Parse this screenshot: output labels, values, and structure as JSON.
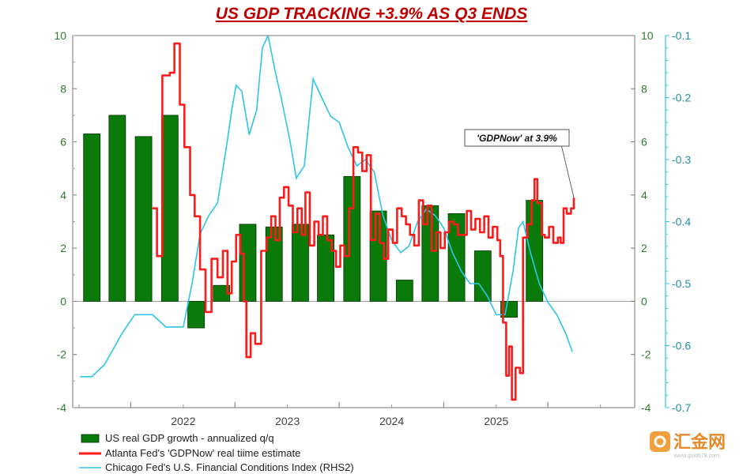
{
  "chart_data": {
    "type": "bar",
    "title": "US GDP TRACKING +3.9% AS Q3 ENDS",
    "xlabel": "",
    "ylabel": "",
    "ylim": [
      -4,
      10
    ],
    "ylim_rhs2": [
      -0.7,
      -0.1
    ],
    "yticks_left": [
      "10",
      "8",
      "6",
      "4",
      "2",
      "0",
      "-2",
      "-4"
    ],
    "yticks_right1": [
      "10",
      "8",
      "6",
      "4",
      "2",
      "0",
      "-2",
      "-4"
    ],
    "yticks_right2": [
      "-0.1",
      "-0.2",
      "-0.3",
      "-0.4",
      "-0.5",
      "-0.6",
      "-0.7"
    ],
    "xtick_labels": [
      "2022",
      "2023",
      "2024",
      "2025"
    ],
    "grid": false,
    "legend_position": "bottom-left",
    "series": [
      {
        "name": "US real GDP growth - annualized q/q",
        "type": "bar",
        "axis": "left",
        "color": "#0a7a0a",
        "points": [
          {
            "x": "2021-01",
            "y": 6.3
          },
          {
            "x": "2021-04",
            "y": 7.0
          },
          {
            "x": "2021-07",
            "y": 6.2
          },
          {
            "x": "2021-10",
            "y": 7.0
          },
          {
            "x": "2022-01",
            "y": -1.0
          },
          {
            "x": "2022-04",
            "y": 0.6
          },
          {
            "x": "2022-07",
            "y": 2.9
          },
          {
            "x": "2022-10",
            "y": 2.8
          },
          {
            "x": "2023-01",
            "y": 2.9
          },
          {
            "x": "2023-04",
            "y": 2.5
          },
          {
            "x": "2023-07",
            "y": 4.7
          },
          {
            "x": "2023-10",
            "y": 3.4
          },
          {
            "x": "2024-01",
            "y": 0.8
          },
          {
            "x": "2024-04",
            "y": 3.6
          },
          {
            "x": "2024-07",
            "y": 3.3
          },
          {
            "x": "2024-10",
            "y": 1.9
          },
          {
            "x": "2025-01",
            "y": -0.6
          },
          {
            "x": "2025-04",
            "y": 3.8
          }
        ]
      },
      {
        "name": "Atlanta Fed's 'GDPNow' real tiime estimate",
        "type": "line",
        "axis": "left",
        "color": "#ff1a1a",
        "points": [
          {
            "x": "2021-09-15",
            "y": 3.5
          },
          {
            "x": "2021-10-01",
            "y": 1.7
          },
          {
            "x": "2021-10-20",
            "y": 8.5
          },
          {
            "x": "2021-11-15",
            "y": 8.6
          },
          {
            "x": "2021-12-01",
            "y": 9.7
          },
          {
            "x": "2021-12-20",
            "y": 7.4
          },
          {
            "x": "2022-01-05",
            "y": 5.8
          },
          {
            "x": "2022-01-25",
            "y": 4.0
          },
          {
            "x": "2022-02-10",
            "y": 3.2
          },
          {
            "x": "2022-03-01",
            "y": 1.2
          },
          {
            "x": "2022-03-20",
            "y": -0.4
          },
          {
            "x": "2022-04-10",
            "y": 1.6
          },
          {
            "x": "2022-05-01",
            "y": 0.9
          },
          {
            "x": "2022-05-20",
            "y": 1.9
          },
          {
            "x": "2022-06-05",
            "y": 0.3
          },
          {
            "x": "2022-06-20",
            "y": 1.5
          },
          {
            "x": "2022-07-05",
            "y": 2.5
          },
          {
            "x": "2022-07-20",
            "y": 1.8
          },
          {
            "x": "2022-08-01",
            "y": 0.0
          },
          {
            "x": "2022-08-10",
            "y": -2.1
          },
          {
            "x": "2022-08-25",
            "y": -1.2
          },
          {
            "x": "2022-09-10",
            "y": -1.6
          },
          {
            "x": "2022-10-01",
            "y": 1.9
          },
          {
            "x": "2022-10-20",
            "y": 2.4
          },
          {
            "x": "2022-11-05",
            "y": 3.2
          },
          {
            "x": "2022-11-20",
            "y": 2.3
          },
          {
            "x": "2022-12-05",
            "y": 3.9
          },
          {
            "x": "2022-12-20",
            "y": 4.3
          },
          {
            "x": "2023-01-05",
            "y": 3.6
          },
          {
            "x": "2023-01-20",
            "y": 2.6
          },
          {
            "x": "2023-02-05",
            "y": 3.5
          },
          {
            "x": "2023-02-20",
            "y": 2.5
          },
          {
            "x": "2023-03-05",
            "y": 4.1
          },
          {
            "x": "2023-03-20",
            "y": 2.1
          },
          {
            "x": "2023-04-05",
            "y": 3.0
          },
          {
            "x": "2023-04-20",
            "y": 2.5
          },
          {
            "x": "2023-05-05",
            "y": 3.2
          },
          {
            "x": "2023-05-20",
            "y": 2.3
          },
          {
            "x": "2023-06-05",
            "y": 1.9
          },
          {
            "x": "2023-06-20",
            "y": 1.3
          },
          {
            "x": "2023-07-05",
            "y": 2.1
          },
          {
            "x": "2023-07-20",
            "y": 1.7
          },
          {
            "x": "2023-08-05",
            "y": 3.5
          },
          {
            "x": "2023-08-20",
            "y": 5.8
          },
          {
            "x": "2023-09-05",
            "y": 5.6
          },
          {
            "x": "2023-09-20",
            "y": 4.9
          },
          {
            "x": "2023-10-05",
            "y": 5.5
          },
          {
            "x": "2023-10-20",
            "y": 2.3
          },
          {
            "x": "2023-11-05",
            "y": 3.3
          },
          {
            "x": "2023-11-20",
            "y": 2.2
          },
          {
            "x": "2023-12-05",
            "y": 1.6
          },
          {
            "x": "2023-12-20",
            "y": 2.7
          },
          {
            "x": "2024-01-05",
            "y": 2.2
          },
          {
            "x": "2024-01-20",
            "y": 3.5
          },
          {
            "x": "2024-02-05",
            "y": 3.2
          },
          {
            "x": "2024-02-20",
            "y": 2.9
          },
          {
            "x": "2024-03-05",
            "y": 2.5
          },
          {
            "x": "2024-03-20",
            "y": 2.1
          },
          {
            "x": "2024-04-05",
            "y": 3.8
          },
          {
            "x": "2024-04-20",
            "y": 2.9
          },
          {
            "x": "2024-05-05",
            "y": 3.6
          },
          {
            "x": "2024-05-20",
            "y": 1.9
          },
          {
            "x": "2024-06-05",
            "y": 2.6
          },
          {
            "x": "2024-06-20",
            "y": 2.0
          },
          {
            "x": "2024-07-05",
            "y": 2.6
          },
          {
            "x": "2024-07-20",
            "y": 3.0
          },
          {
            "x": "2024-08-05",
            "y": 2.9
          },
          {
            "x": "2024-08-20",
            "y": 2.5
          },
          {
            "x": "2024-09-05",
            "y": 2.5
          },
          {
            "x": "2024-09-20",
            "y": 3.4
          },
          {
            "x": "2024-10-05",
            "y": 2.7
          },
          {
            "x": "2024-10-20",
            "y": 3.1
          },
          {
            "x": "2024-11-05",
            "y": 2.6
          },
          {
            "x": "2024-11-20",
            "y": 3.2
          },
          {
            "x": "2024-12-05",
            "y": 2.4
          },
          {
            "x": "2024-12-20",
            "y": 2.8
          },
          {
            "x": "2025-01-05",
            "y": 2.3
          },
          {
            "x": "2025-01-15",
            "y": 1.7
          },
          {
            "x": "2025-01-25",
            "y": -0.8
          },
          {
            "x": "2025-02-05",
            "y": -2.8
          },
          {
            "x": "2025-02-15",
            "y": -1.7
          },
          {
            "x": "2025-02-25",
            "y": -3.7
          },
          {
            "x": "2025-03-10",
            "y": -2.5
          },
          {
            "x": "2025-03-25",
            "y": -2.7
          },
          {
            "x": "2025-04-05",
            "y": 2.4
          },
          {
            "x": "2025-04-20",
            "y": 2.9
          },
          {
            "x": "2025-05-05",
            "y": 3.8
          },
          {
            "x": "2025-05-15",
            "y": 4.6
          },
          {
            "x": "2025-05-25",
            "y": 3.7
          },
          {
            "x": "2025-06-10",
            "y": 2.5
          },
          {
            "x": "2025-06-20",
            "y": 2.4
          },
          {
            "x": "2025-07-05",
            "y": 2.8
          },
          {
            "x": "2025-07-20",
            "y": 2.2
          },
          {
            "x": "2025-08-05",
            "y": 2.4
          },
          {
            "x": "2025-08-15",
            "y": 2.2
          },
          {
            "x": "2025-08-25",
            "y": 3.5
          },
          {
            "x": "2025-09-05",
            "y": 3.3
          },
          {
            "x": "2025-09-20",
            "y": 3.5
          },
          {
            "x": "2025-09-30",
            "y": 3.9
          }
        ]
      },
      {
        "name": "Chicago Fed's U.S. Financial Conditions Index (RHS2)",
        "type": "line",
        "axis": "right2",
        "color": "#2cc6e6",
        "points": [
          {
            "x": "2021-01-05",
            "y": -0.65
          },
          {
            "x": "2021-02-15",
            "y": -0.65
          },
          {
            "x": "2021-04-01",
            "y": -0.63
          },
          {
            "x": "2021-06-01",
            "y": -0.58
          },
          {
            "x": "2021-07-15",
            "y": -0.55
          },
          {
            "x": "2021-09-15",
            "y": -0.55
          },
          {
            "x": "2021-11-01",
            "y": -0.57
          },
          {
            "x": "2022-01-01",
            "y": -0.57
          },
          {
            "x": "2022-02-01",
            "y": -0.5
          },
          {
            "x": "2022-03-01",
            "y": -0.42
          },
          {
            "x": "2022-04-01",
            "y": -0.39
          },
          {
            "x": "2022-05-01",
            "y": -0.37
          },
          {
            "x": "2022-06-01",
            "y": -0.28
          },
          {
            "x": "2022-06-20",
            "y": -0.22
          },
          {
            "x": "2022-07-05",
            "y": -0.18
          },
          {
            "x": "2022-07-25",
            "y": -0.19
          },
          {
            "x": "2022-08-20",
            "y": -0.26
          },
          {
            "x": "2022-09-15",
            "y": -0.22
          },
          {
            "x": "2022-10-05",
            "y": -0.12
          },
          {
            "x": "2022-10-25",
            "y": -0.1
          },
          {
            "x": "2022-11-20",
            "y": -0.16
          },
          {
            "x": "2022-12-10",
            "y": -0.2
          },
          {
            "x": "2023-01-10",
            "y": -0.27
          },
          {
            "x": "2023-02-01",
            "y": -0.33
          },
          {
            "x": "2023-03-01",
            "y": -0.31
          },
          {
            "x": "2023-04-01",
            "y": -0.17
          },
          {
            "x": "2023-05-01",
            "y": -0.2
          },
          {
            "x": "2023-06-01",
            "y": -0.23
          },
          {
            "x": "2023-07-01",
            "y": -0.24
          },
          {
            "x": "2023-08-01",
            "y": -0.28
          },
          {
            "x": "2023-09-01",
            "y": -0.31
          },
          {
            "x": "2023-10-01",
            "y": -0.3
          },
          {
            "x": "2023-11-01",
            "y": -0.32
          },
          {
            "x": "2023-12-01",
            "y": -0.39
          },
          {
            "x": "2024-01-01",
            "y": -0.43
          },
          {
            "x": "2024-02-01",
            "y": -0.45
          },
          {
            "x": "2024-03-01",
            "y": -0.44
          },
          {
            "x": "2024-04-01",
            "y": -0.4
          },
          {
            "x": "2024-05-01",
            "y": -0.38
          },
          {
            "x": "2024-06-01",
            "y": -0.39
          },
          {
            "x": "2024-07-01",
            "y": -0.41
          },
          {
            "x": "2024-08-01",
            "y": -0.45
          },
          {
            "x": "2024-09-01",
            "y": -0.48
          },
          {
            "x": "2024-10-01",
            "y": -0.5
          },
          {
            "x": "2024-11-01",
            "y": -0.5
          },
          {
            "x": "2024-12-01",
            "y": -0.52
          },
          {
            "x": "2025-01-01",
            "y": -0.55
          },
          {
            "x": "2025-02-01",
            "y": -0.55
          },
          {
            "x": "2025-03-01",
            "y": -0.48
          },
          {
            "x": "2025-03-20",
            "y": -0.41
          },
          {
            "x": "2025-04-05",
            "y": -0.4
          },
          {
            "x": "2025-05-01",
            "y": -0.45
          },
          {
            "x": "2025-06-01",
            "y": -0.5
          },
          {
            "x": "2025-07-01",
            "y": -0.53
          },
          {
            "x": "2025-08-01",
            "y": -0.55
          },
          {
            "x": "2025-09-01",
            "y": -0.58
          },
          {
            "x": "2025-09-25",
            "y": -0.61
          }
        ]
      }
    ],
    "annotations": [
      {
        "text": "'GDPNow' at 3.9%",
        "target": {
          "x": "2025-09-30",
          "y": 3.9
        }
      }
    ]
  },
  "legend": {
    "bar_label": "US real GDP growth - annualized q/q",
    "red_label": "Atlanta Fed's 'GDPNow' real tiime estimate",
    "cyan_label": "Chicago Fed's U.S. Financial Conditions Index (RHS2)"
  },
  "colors": {
    "bar": "#0a7a0a",
    "bar_edge": "#003300",
    "gdpnow": "#ff1a1a",
    "fci": "#2cc6e6",
    "title": "#c00000",
    "axis_left": "#2f7d2f",
    "axis_right2": "#1e8fa8"
  },
  "watermark": {
    "text": "汇金网",
    "sub": "www.gold678.com"
  }
}
